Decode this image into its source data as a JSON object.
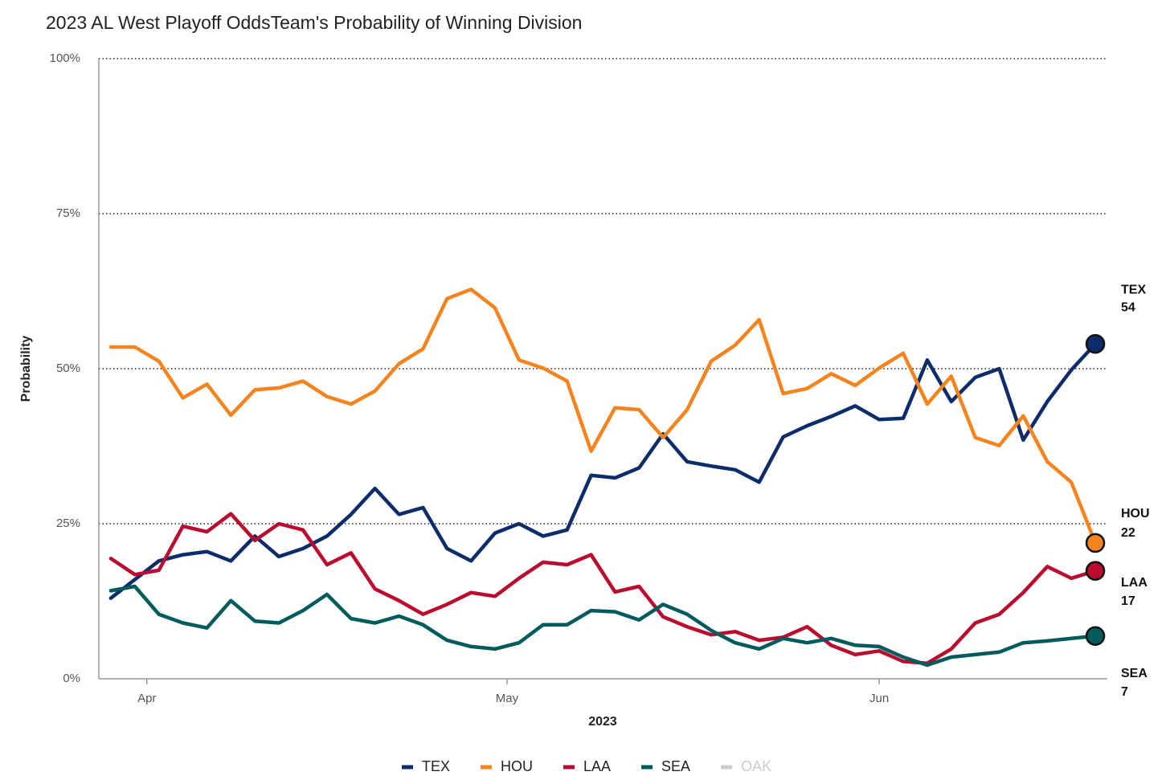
{
  "chart_data": {
    "type": "line",
    "title": "2023 AL West Playoff OddsTeam's Probability of Winning Division",
    "y_label": "Probability",
    "x_label": "2023",
    "xlim": [
      87,
      171
    ],
    "xticks": [
      {
        "value": 91,
        "label": "Apr"
      },
      {
        "value": 121,
        "label": "May"
      },
      {
        "value": 152,
        "label": "Jun"
      }
    ],
    "ylim": [
      0,
      100
    ],
    "yticks": [
      {
        "value": 0,
        "label": "0%"
      },
      {
        "value": 25,
        "label": "25%"
      },
      {
        "value": 50,
        "label": "50%"
      },
      {
        "value": 75,
        "label": "75%"
      },
      {
        "value": 100,
        "label": "100%"
      }
    ],
    "grid": true,
    "legend": "bottom",
    "x": [
      88,
      90,
      92,
      94,
      96,
      98,
      100,
      102,
      104,
      106,
      108,
      110,
      112,
      114,
      116,
      118,
      120,
      122,
      124,
      126,
      128,
      130,
      132,
      134,
      136,
      138,
      140,
      142,
      144,
      146,
      148,
      150,
      152,
      154,
      156,
      158,
      160,
      162,
      164,
      166,
      168,
      170
    ],
    "series": [
      {
        "name": "TEX",
        "color": "#0c2c6b",
        "end_label": 54,
        "values": [
          13,
          16,
          19,
          20,
          20.5,
          19,
          23,
          19.7,
          21,
          23,
          26.5,
          30.7,
          26.5,
          27.6,
          21,
          19,
          23.5,
          25,
          23,
          24,
          32.8,
          32.4,
          34,
          39.5,
          35,
          34.3,
          33.7,
          31.7,
          39,
          40.8,
          42.3,
          44,
          41.8,
          42,
          51.4,
          44.7,
          48.6,
          50,
          38.5,
          44.7,
          49.8,
          54
        ]
      },
      {
        "name": "HOU",
        "color": "#f5841f",
        "end_label": 22,
        "values": [
          53.5,
          53.5,
          51.2,
          45.3,
          47.5,
          42.5,
          46.6,
          46.9,
          48,
          45.5,
          44.3,
          46.4,
          50.8,
          53.2,
          61.3,
          62.8,
          59.8,
          51.4,
          50.1,
          48,
          36.7,
          43.7,
          43.4,
          38.9,
          43.4,
          51.2,
          53.8,
          57.9,
          46,
          46.8,
          49.2,
          47.3,
          50.1,
          52.5,
          44.3,
          48.8,
          38.9,
          37.6,
          42.4,
          35,
          31.7,
          21.9
        ]
      },
      {
        "name": "LAA",
        "color": "#ba0c2f",
        "end_label": 17,
        "values": [
          19.4,
          16.8,
          17.5,
          24.6,
          23.7,
          26.6,
          22.3,
          25,
          24,
          18.4,
          20.3,
          14.5,
          12.6,
          10.4,
          12,
          13.9,
          13.3,
          16.2,
          18.8,
          18.4,
          20,
          14,
          14.9,
          10,
          8.4,
          7.1,
          7.6,
          6.2,
          6.7,
          8.4,
          5.4,
          3.9,
          4.5,
          2.8,
          2.5,
          4.8,
          9,
          10.4,
          13.9,
          18.1,
          16.2,
          17.4
        ]
      },
      {
        "name": "SEA",
        "color": "#005c5c",
        "end_label": 7,
        "values": [
          14.2,
          14.9,
          10.4,
          9,
          8.2,
          12.6,
          9.3,
          9,
          11,
          13.6,
          9.7,
          9,
          10.1,
          8.7,
          6.2,
          5.2,
          4.8,
          5.8,
          8.7,
          8.7,
          11,
          10.8,
          9.5,
          12,
          10.4,
          7.8,
          5.8,
          4.8,
          6.5,
          5.8,
          6.5,
          5.4,
          5.2,
          3.5,
          2.2,
          3.5,
          3.9,
          4.3,
          5.8,
          6.1,
          6.5,
          6.9
        ]
      }
    ],
    "legend_inactive": [
      {
        "name": "OAK",
        "color": "#cccccc"
      }
    ]
  }
}
